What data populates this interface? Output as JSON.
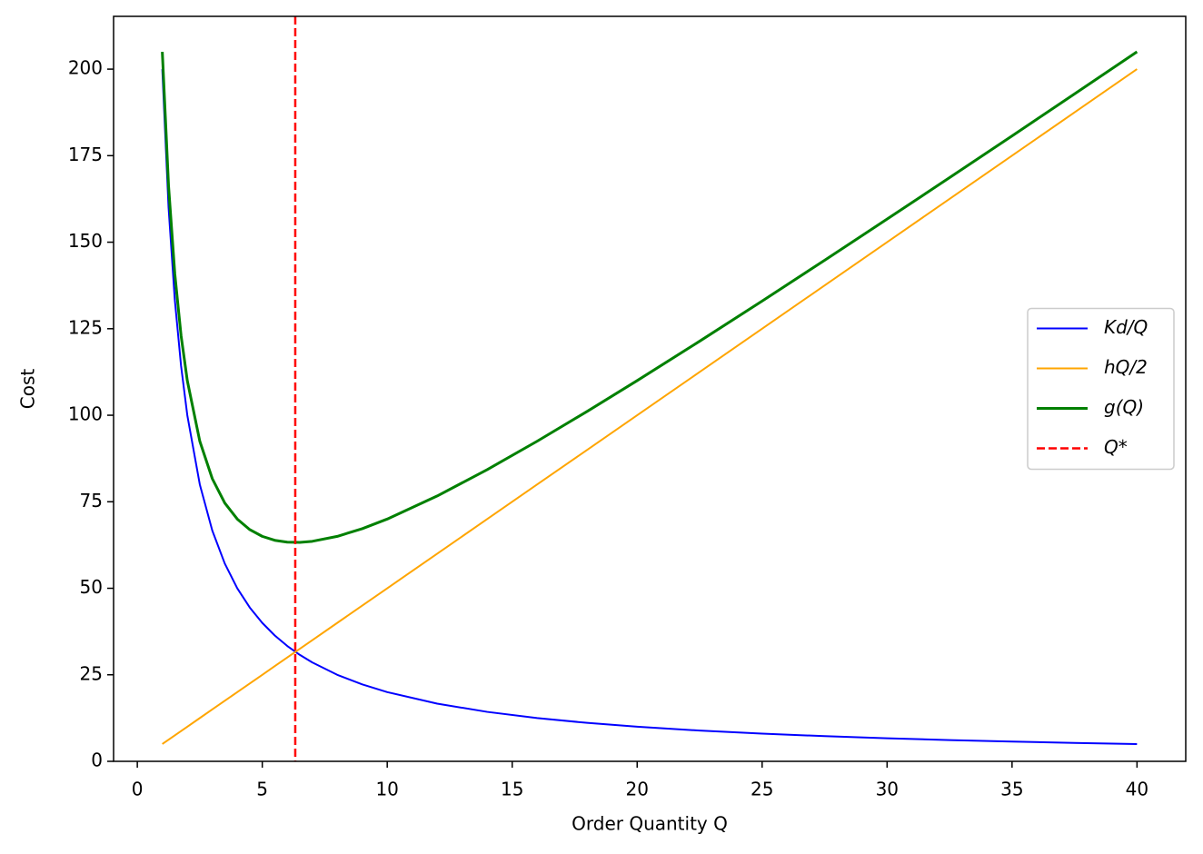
{
  "chart_data": {
    "type": "line",
    "xlabel": "Order Quantity Q",
    "ylabel": "Cost",
    "x": [
      1,
      1.25,
      1.5,
      1.75,
      2,
      2.5,
      3,
      3.5,
      4,
      4.5,
      5,
      5.5,
      6,
      6.5,
      7,
      8,
      9,
      10,
      12,
      14,
      16,
      18,
      20,
      22.5,
      25,
      27.5,
      30,
      32.5,
      35,
      37.5,
      40
    ],
    "series": [
      {
        "name": "Kd/Q",
        "color": "#0000ff",
        "linewidth": 2,
        "values": [
          200,
          160,
          133.33,
          114.29,
          100,
          80,
          66.67,
          57.14,
          50,
          44.44,
          40,
          36.36,
          33.33,
          30.77,
          28.57,
          25,
          22.22,
          20,
          16.67,
          14.29,
          12.5,
          11.11,
          10,
          8.89,
          8,
          7.27,
          6.67,
          6.15,
          5.71,
          5.33,
          5
        ]
      },
      {
        "name": "hQ/2",
        "color": "#ffa500",
        "linewidth": 2,
        "values": [
          5,
          6.25,
          7.5,
          8.75,
          10,
          12.5,
          15,
          17.5,
          20,
          22.5,
          25,
          27.5,
          30,
          32.5,
          35,
          40,
          45,
          50,
          60,
          70,
          80,
          90,
          100,
          112.5,
          125,
          137.5,
          150,
          162.5,
          175,
          187.5,
          200
        ]
      },
      {
        "name": "g(Q)",
        "color": "#008000",
        "linewidth": 3,
        "values": [
          205,
          166.25,
          140.83,
          123.04,
          110,
          92.5,
          81.67,
          74.64,
          70,
          66.94,
          65,
          63.86,
          63.33,
          63.27,
          63.57,
          65,
          67.22,
          70,
          76.67,
          84.29,
          92.5,
          101.11,
          110,
          121.39,
          133,
          144.77,
          156.67,
          168.65,
          180.71,
          192.83,
          205
        ]
      }
    ],
    "vline": {
      "name": "Q*",
      "x": 6.32,
      "color": "#ff0000",
      "linewidth": 2.5,
      "dashed": true
    },
    "xlim": [
      -0.95,
      41.95
    ],
    "xticks": [
      0,
      5,
      10,
      15,
      20,
      25,
      30,
      35,
      40
    ],
    "ylim": [
      0,
      215.25
    ],
    "yticks": [
      0,
      25,
      50,
      75,
      100,
      125,
      150,
      175,
      200
    ],
    "legend": "center right"
  }
}
